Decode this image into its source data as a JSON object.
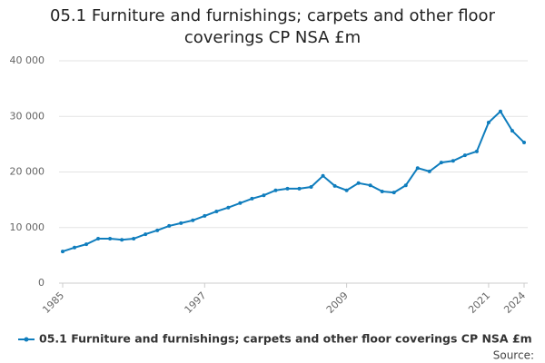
{
  "chart_data": {
    "type": "line",
    "title": "05.1 Furniture and furnishings; carpets and other floor coverings CP NSA £m",
    "x": [
      1985,
      1986,
      1987,
      1988,
      1989,
      1990,
      1991,
      1992,
      1993,
      1994,
      1995,
      1996,
      1997,
      1998,
      1999,
      2000,
      2001,
      2002,
      2003,
      2004,
      2005,
      2006,
      2007,
      2008,
      2009,
      2010,
      2011,
      2012,
      2013,
      2014,
      2015,
      2016,
      2017,
      2018,
      2019,
      2020,
      2021,
      2022,
      2023,
      2024
    ],
    "series": [
      {
        "name": "05.1 Furniture and furnishings; carpets and other floor coverings CP NSA £m",
        "color": "#0f7dbd",
        "values": [
          5700,
          6400,
          7000,
          8000,
          8000,
          7800,
          8000,
          8800,
          9500,
          10300,
          10800,
          11300,
          12100,
          12900,
          13600,
          14400,
          15200,
          15800,
          16700,
          17000,
          17000,
          17300,
          19300,
          17500,
          16700,
          18000,
          17600,
          16500,
          16300,
          17600,
          20700,
          20100,
          21700,
          22000,
          23000,
          23700,
          28900,
          30900,
          27400,
          25300
        ]
      }
    ],
    "xlim": [
      1985,
      2024
    ],
    "xticks": [
      1985,
      1997,
      2009,
      2021,
      2024
    ],
    "ylim": [
      0,
      40000
    ],
    "yticks": [
      0,
      {
        "value": 10000,
        "label": "10 000"
      },
      {
        "value": 20000,
        "label": "20 000"
      },
      {
        "value": 30000,
        "label": "30 000"
      },
      {
        "value": 40000,
        "label": "40 000"
      }
    ],
    "grid": true,
    "source_label": "Source:"
  }
}
